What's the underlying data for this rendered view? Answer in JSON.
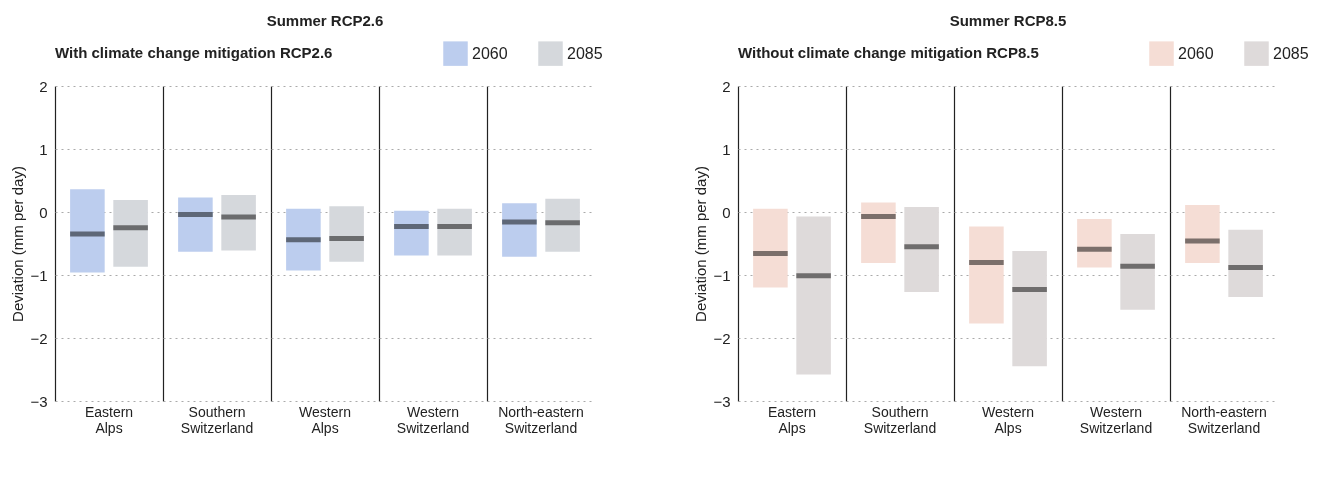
{
  "chart_data": [
    {
      "type": "box",
      "title": "Summer RCP2.6",
      "ylabel": "Deviation (mm per day)",
      "legend_title": "With climate change mitigation RCP2.6",
      "legend": "top",
      "grid": true,
      "categories": [
        "Eastern Alps",
        "Southern Switzerland",
        "Western Alps",
        "Western Switzerland",
        "North-eastern Switzerland"
      ],
      "ylim": [
        -3,
        2
      ],
      "yticks": [
        {
          "value": -3,
          "label": "−3"
        },
        {
          "value": -2,
          "label": "−2"
        },
        {
          "value": -1,
          "label": "−1"
        },
        0,
        1,
        2
      ],
      "series": [
        {
          "name": "2060",
          "color": "#bccdee",
          "boxes": [
            {
              "low": -0.96,
              "q1": -0.96,
              "median": -0.35,
              "q3": 0.36,
              "high": 0.36
            },
            {
              "low": -0.63,
              "q1": -0.63,
              "median": -0.04,
              "q3": 0.23,
              "high": 0.23
            },
            {
              "low": -0.93,
              "q1": -0.93,
              "median": -0.44,
              "q3": 0.05,
              "high": 0.05
            },
            {
              "low": -0.69,
              "q1": -0.69,
              "median": -0.23,
              "q3": 0.02,
              "high": 0.02
            },
            {
              "low": -0.71,
              "q1": -0.71,
              "median": -0.16,
              "q3": 0.14,
              "high": 0.14
            }
          ]
        },
        {
          "name": "2085",
          "color": "#d5d8dc",
          "boxes": [
            {
              "low": -0.87,
              "q1": -0.87,
              "median": -0.25,
              "q3": 0.19,
              "high": 0.19
            },
            {
              "low": -0.61,
              "q1": -0.61,
              "median": -0.08,
              "q3": 0.27,
              "high": 0.27
            },
            {
              "low": -0.79,
              "q1": -0.79,
              "median": -0.42,
              "q3": 0.09,
              "high": 0.09
            },
            {
              "low": -0.69,
              "q1": -0.69,
              "median": -0.23,
              "q3": 0.05,
              "high": 0.05
            },
            {
              "low": -0.63,
              "q1": -0.63,
              "median": -0.17,
              "q3": 0.21,
              "high": 0.21
            }
          ]
        }
      ]
    },
    {
      "type": "box",
      "title": "Summer RCP8.5",
      "ylabel": "Deviation (mm per day)",
      "legend_title": "Without climate change mitigation RCP8.5",
      "legend": "top",
      "grid": true,
      "categories": [
        "Eastern Alps",
        "Southern Switzerland",
        "Western Alps",
        "Western Switzerland",
        "North-eastern Switzerland"
      ],
      "ylim": [
        -3,
        2
      ],
      "yticks": [
        {
          "value": -3,
          "label": "−3"
        },
        {
          "value": -2,
          "label": "−2"
        },
        {
          "value": -1,
          "label": "−1"
        },
        0,
        1,
        2
      ],
      "series": [
        {
          "name": "2060",
          "color": "#f5ddd5",
          "boxes": [
            {
              "low": -1.2,
              "q1": -1.2,
              "median": -0.66,
              "q3": 0.05,
              "high": 0.05
            },
            {
              "low": -0.81,
              "q1": -0.81,
              "median": -0.07,
              "q3": 0.15,
              "high": 0.15
            },
            {
              "low": -1.77,
              "q1": -1.77,
              "median": -0.8,
              "q3": -0.23,
              "high": -0.23
            },
            {
              "low": -0.88,
              "q1": -0.88,
              "median": -0.59,
              "q3": -0.11,
              "high": -0.11
            },
            {
              "low": -0.81,
              "q1": -0.81,
              "median": -0.46,
              "q3": 0.11,
              "high": 0.11
            }
          ]
        },
        {
          "name": "2085",
          "color": "#dedada",
          "boxes": [
            {
              "low": -2.58,
              "q1": -2.58,
              "median": -1.01,
              "q3": -0.07,
              "high": -0.07
            },
            {
              "low": -1.27,
              "q1": -1.27,
              "median": -0.55,
              "q3": 0.08,
              "high": 0.08
            },
            {
              "low": -2.45,
              "q1": -2.45,
              "median": -1.23,
              "q3": -0.62,
              "high": -0.62
            },
            {
              "low": -1.55,
              "q1": -1.55,
              "median": -0.86,
              "q3": -0.35,
              "high": -0.35
            },
            {
              "low": -1.35,
              "q1": -1.35,
              "median": -0.88,
              "q3": -0.28,
              "high": -0.28
            }
          ]
        }
      ]
    }
  ]
}
